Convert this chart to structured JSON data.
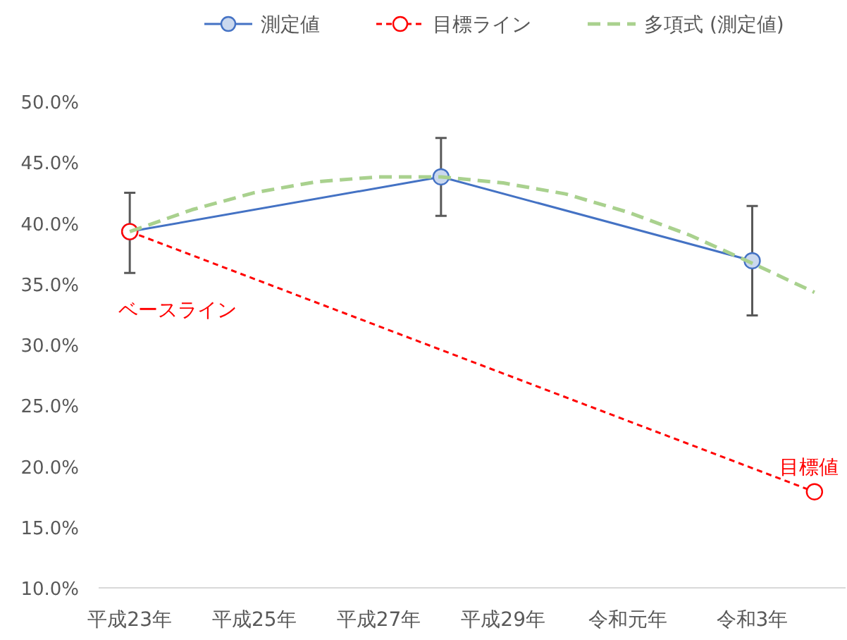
{
  "chart_data": {
    "type": "line",
    "legend": "top",
    "grid": false,
    "categories": [
      "平成23年",
      null,
      "平成25年",
      null,
      "平成27年",
      null,
      "平成29年",
      null,
      "令和元年",
      null,
      "令和3年",
      null
    ],
    "ylim": [
      10,
      50
    ],
    "yticks": [
      {
        "value": 10,
        "label": "10.0%"
      },
      {
        "value": 15,
        "label": "15.0%"
      },
      {
        "value": 20,
        "label": "20.0%"
      },
      {
        "value": 25,
        "label": "25.0%"
      },
      {
        "value": 30,
        "label": "30.0%"
      },
      {
        "value": 35,
        "label": "35.0%"
      },
      {
        "value": 40,
        "label": "40.0%"
      },
      {
        "value": 45,
        "label": "45.0%"
      },
      {
        "value": 50,
        "label": "50.0%"
      }
    ],
    "series": [
      {
        "name": "測定値",
        "color": "#4472c4",
        "values": [
          39.3,
          null,
          null,
          null,
          null,
          43.8,
          null,
          null,
          null,
          null,
          36.9,
          null
        ],
        "errors": [
          [
            35.9,
            42.5
          ],
          null,
          null,
          null,
          null,
          [
            40.6,
            47.0
          ],
          null,
          null,
          null,
          null,
          [
            32.4,
            41.4
          ],
          null
        ],
        "marker": "circle",
        "line_style": "solid"
      },
      {
        "name": "目標ライン",
        "color": "#ff0000",
        "values": [
          39.3,
          null,
          null,
          null,
          null,
          null,
          null,
          null,
          null,
          null,
          null,
          17.9
        ],
        "marker": "circle",
        "line_style": "dotted"
      },
      {
        "name": "多項式 (測定値)",
        "color": "#a9d18e",
        "values": [
          39.3,
          41.1,
          42.5,
          43.4,
          43.8,
          43.8,
          43.3,
          42.4,
          40.9,
          39.0,
          36.7,
          34.3
        ],
        "marker": "none",
        "line_style": "dashed"
      }
    ],
    "annotations": [
      "ベースライン",
      "目標値"
    ]
  }
}
